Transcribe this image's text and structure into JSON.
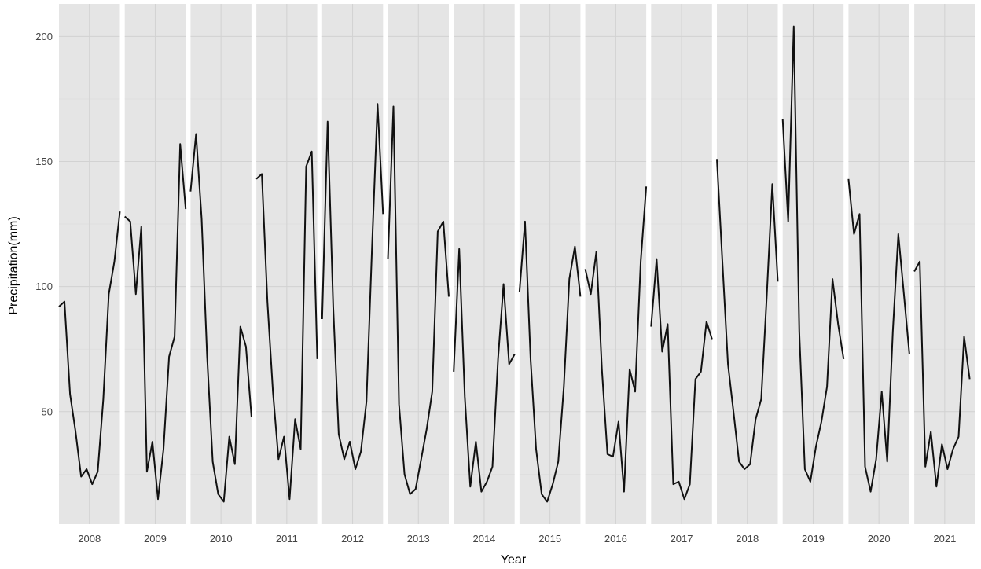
{
  "chart_data": {
    "type": "line",
    "title": "",
    "xlabel": "Year",
    "ylabel": "Precipitation(mm)",
    "panels": [
      "2008",
      "2009",
      "2010",
      "2011",
      "2012",
      "2013",
      "2014",
      "2015",
      "2016",
      "2017",
      "2018",
      "2019",
      "2020",
      "2021"
    ],
    "y_ticks": [
      50,
      100,
      150,
      200
    ],
    "ylim": [
      5,
      213
    ],
    "grid": true,
    "legend": "none",
    "colors": {
      "panel_bg": "#e5e5e5",
      "gridline": "#d2d2d2",
      "line": "#111111"
    },
    "series": [
      {
        "values": [
          [
            92,
            94,
            57,
            42,
            24,
            27,
            21,
            26,
            55,
            97,
            110,
            130
          ],
          [
            128,
            126,
            97,
            124,
            26,
            38,
            15,
            35,
            72,
            80,
            157,
            131
          ],
          [
            138,
            161,
            127,
            72,
            30,
            17,
            14,
            40,
            29,
            84,
            76,
            48
          ],
          [
            143,
            145,
            94,
            58,
            31,
            40,
            15,
            47,
            35,
            148,
            154,
            71
          ],
          [
            87,
            166,
            92,
            41,
            31,
            38,
            27,
            34,
            54,
            115,
            173,
            129
          ],
          [
            111,
            172,
            53,
            25,
            17,
            19,
            31,
            43,
            58,
            122,
            126,
            96
          ],
          [
            66,
            115,
            56,
            20,
            38,
            18,
            22,
            28,
            71,
            101,
            69,
            73
          ],
          [
            98,
            126,
            71,
            35,
            17,
            14,
            21,
            30,
            60,
            103,
            116,
            96
          ],
          [
            107,
            97,
            114,
            67,
            33,
            32,
            46,
            18,
            67,
            58,
            110,
            140
          ],
          [
            84,
            111,
            74,
            85,
            21,
            22,
            15,
            21,
            63,
            66,
            86,
            79
          ],
          [
            151,
            110,
            69,
            50,
            30,
            27,
            29,
            47,
            55,
            96,
            141,
            102
          ],
          [
            167,
            126,
            204,
            82,
            27,
            22,
            36,
            46,
            60,
            103,
            85,
            71
          ],
          [
            143,
            121,
            129,
            28,
            18,
            31,
            58,
            30,
            82,
            121,
            97,
            73
          ],
          [
            106,
            110,
            28,
            42,
            20,
            37,
            27,
            35,
            40,
            80,
            63
          ]
        ]
      }
    ]
  }
}
